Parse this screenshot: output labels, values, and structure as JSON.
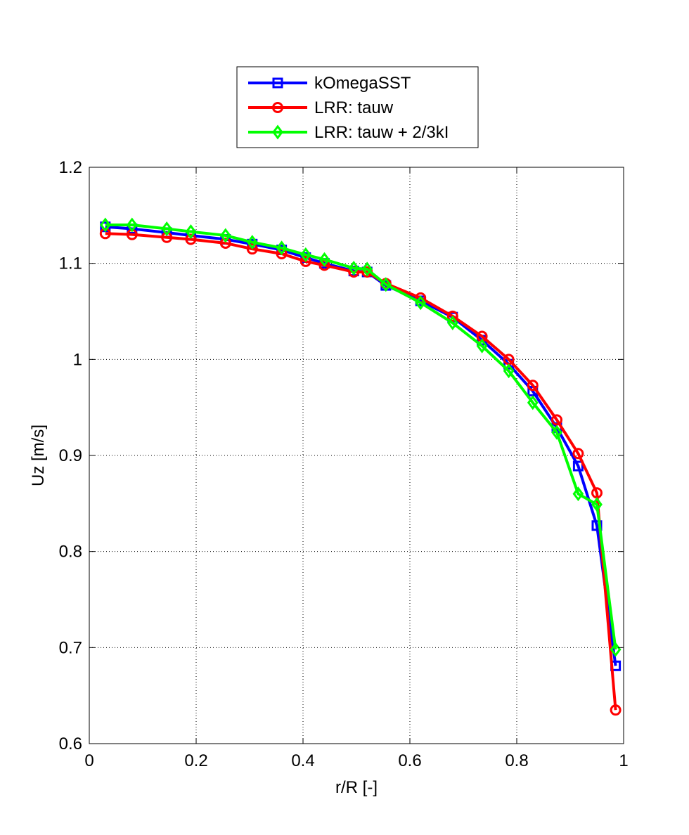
{
  "chart_data": {
    "type": "line",
    "title": "",
    "xlabel": "r/R [-]",
    "ylabel": "Uz [m/s]",
    "xlim": [
      0,
      1
    ],
    "ylim": [
      0.6,
      1.2
    ],
    "xticks": [
      0,
      0.2,
      0.4,
      0.6,
      0.8,
      1
    ],
    "xtick_labels": [
      "0",
      "0.2",
      "0.4",
      "0.6",
      "0.8",
      "1"
    ],
    "yticks": [
      0.6,
      0.7,
      0.8,
      0.9,
      1.0,
      1.1,
      1.2
    ],
    "ytick_labels": [
      "0.6",
      "0.7",
      "0.8",
      "0.9",
      "1",
      "1.1",
      "1.2"
    ],
    "grid": true,
    "legend_position": "top-center",
    "series": [
      {
        "name": "kOmegaSST",
        "color": "#0000ff",
        "marker": "square",
        "x": [
          0.03,
          0.08,
          0.145,
          0.19,
          0.255,
          0.305,
          0.36,
          0.405,
          0.44,
          0.495,
          0.52,
          0.555,
          0.62,
          0.68,
          0.735,
          0.785,
          0.83,
          0.875,
          0.915,
          0.95,
          0.985
        ],
        "y": [
          1.138,
          1.136,
          1.132,
          1.129,
          1.125,
          1.12,
          1.114,
          1.106,
          1.1,
          1.092,
          1.091,
          1.077,
          1.061,
          1.044,
          1.02,
          0.995,
          0.967,
          0.929,
          0.889,
          0.827,
          0.681
        ]
      },
      {
        "name": "LRR: tauw",
        "color": "#ff0000",
        "marker": "circle",
        "x": [
          0.03,
          0.08,
          0.145,
          0.19,
          0.255,
          0.305,
          0.36,
          0.405,
          0.44,
          0.495,
          0.52,
          0.555,
          0.62,
          0.68,
          0.735,
          0.785,
          0.83,
          0.875,
          0.915,
          0.95,
          0.985
        ],
        "y": [
          1.131,
          1.13,
          1.127,
          1.125,
          1.121,
          1.115,
          1.11,
          1.102,
          1.098,
          1.091,
          1.091,
          1.079,
          1.064,
          1.045,
          1.024,
          1.0,
          0.973,
          0.937,
          0.902,
          0.861,
          0.635
        ]
      },
      {
        "name": "LRR: tauw + 2/3kI",
        "color": "#00ff00",
        "marker": "diamond",
        "x": [
          0.03,
          0.08,
          0.145,
          0.19,
          0.255,
          0.305,
          0.36,
          0.405,
          0.44,
          0.495,
          0.52,
          0.555,
          0.62,
          0.68,
          0.735,
          0.785,
          0.83,
          0.875,
          0.915,
          0.95,
          0.985
        ],
        "y": [
          1.14,
          1.14,
          1.136,
          1.133,
          1.129,
          1.122,
          1.116,
          1.109,
          1.104,
          1.095,
          1.094,
          1.078,
          1.059,
          1.038,
          1.014,
          0.988,
          0.955,
          0.924,
          0.86,
          0.849,
          0.698
        ]
      }
    ]
  }
}
